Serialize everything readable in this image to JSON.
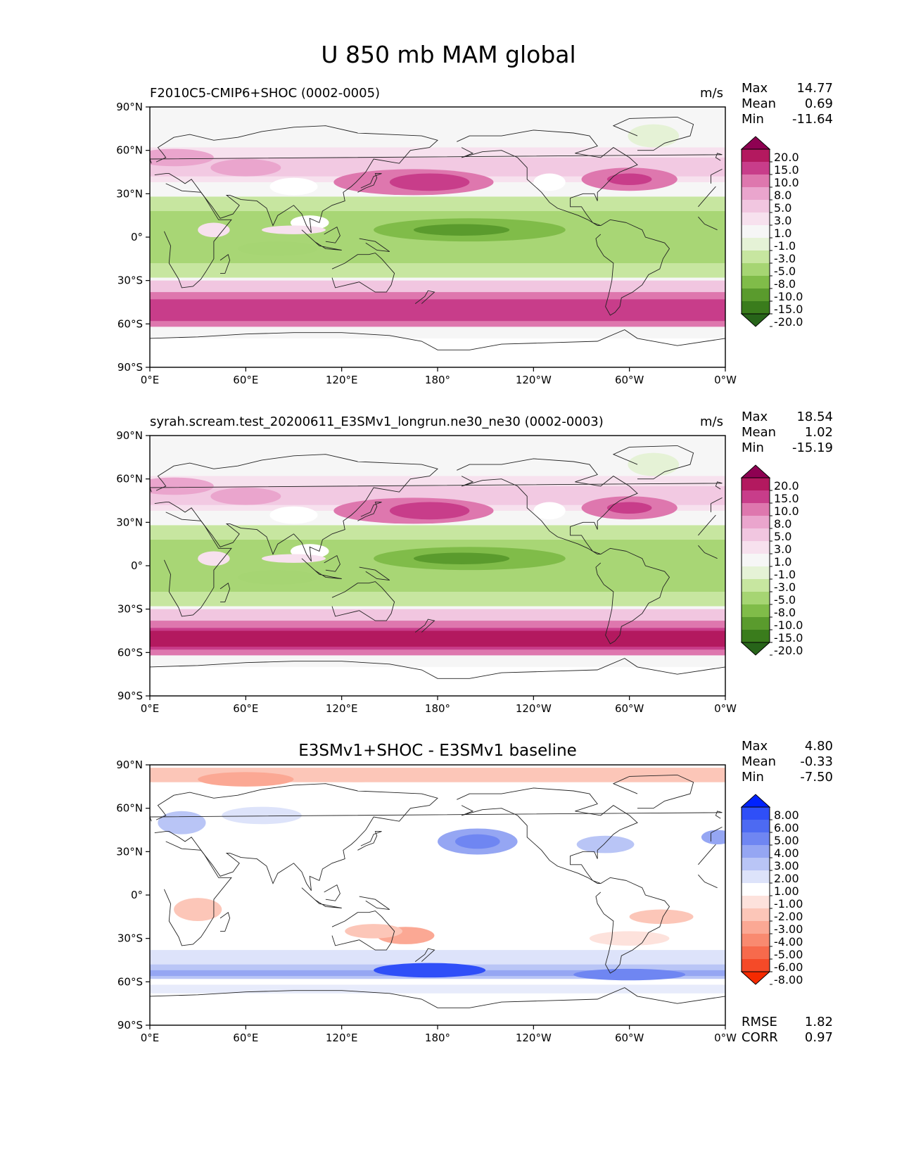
{
  "title": "U 850 mb MAM global",
  "chart_data": {
    "type": "contour-map",
    "xlabel_ticks": [
      "0°E",
      "60°E",
      "120°E",
      "180°",
      "120°W",
      "60°W",
      "0°W"
    ],
    "ylabel_ticks": [
      "90°N",
      "60°N",
      "30°N",
      "0°",
      "30°S",
      "60°S",
      "90°S"
    ],
    "panels": [
      {
        "title": "F2010C5-CMIP6+SHOC (0002-0005)",
        "units": "m/s",
        "stats": [
          [
            "Max",
            "14.77"
          ],
          [
            "Mean",
            "0.69"
          ],
          [
            "Min",
            "-11.64"
          ]
        ],
        "colorbar_levels": [
          "20.0",
          "15.0",
          "10.0",
          "8.0",
          "5.0",
          "3.0",
          "1.0",
          "-1.0",
          "-3.0",
          "-5.0",
          "-8.0",
          "-10.0",
          "-15.0",
          "-20.0"
        ]
      },
      {
        "title": "syrah.scream.test_20200611_E3SMv1_longrun.ne30_ne30 (0002-0003)",
        "units": "m/s",
        "stats": [
          [
            "Max",
            "18.54"
          ],
          [
            "Mean",
            "1.02"
          ],
          [
            "Min",
            "-15.19"
          ]
        ],
        "colorbar_levels": [
          "20.0",
          "15.0",
          "10.0",
          "8.0",
          "5.0",
          "3.0",
          "1.0",
          "-1.0",
          "-3.0",
          "-5.0",
          "-8.0",
          "-10.0",
          "-15.0",
          "-20.0"
        ]
      },
      {
        "title": "E3SMv1+SHOC - E3SMv1 baseline",
        "units": "",
        "stats": [
          [
            "Max",
            "4.80"
          ],
          [
            "Mean",
            "-0.33"
          ],
          [
            "Min",
            "-7.50"
          ]
        ],
        "colorbar_levels": [
          "8.00",
          "6.00",
          "5.00",
          "4.00",
          "3.00",
          "2.00",
          "1.00",
          "-1.00",
          "-2.00",
          "-3.00",
          "-4.00",
          "-5.00",
          "-6.00",
          "-8.00"
        ],
        "footer_stats": [
          [
            "RMSE",
            "1.82"
          ],
          [
            "CORR",
            "0.97"
          ]
        ]
      }
    ]
  },
  "colors": {
    "piyg": [
      "#8e0152",
      "#b3195f",
      "#c83d8a",
      "#de77ae",
      "#eaa5cd",
      "#f1c6e0",
      "#f7e1ee",
      "#f6f6f6",
      "#e5f2d6",
      "#c7e6a0",
      "#a6d573",
      "#80bc49",
      "#5a9b2d",
      "#3a7c1c",
      "#276419"
    ],
    "bwr": [
      "#0022ff",
      "#2f4ff8",
      "#4d6af2",
      "#6f86f2",
      "#95a6f3",
      "#b9c5f6",
      "#dde3fa",
      "#ffffff",
      "#fde2dc",
      "#fcc6b8",
      "#fba894",
      "#f98a70",
      "#f76a4c",
      "#f54a28",
      "#f52a00"
    ]
  }
}
